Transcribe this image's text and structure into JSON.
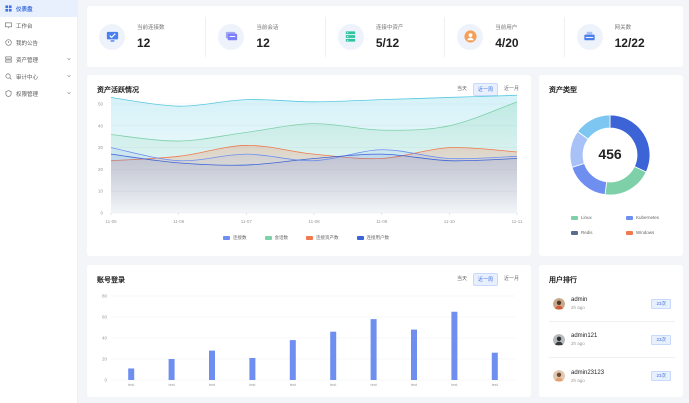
{
  "sidebar": {
    "items": [
      {
        "label": "仪表盘",
        "icon": "dashboard-icon",
        "active": true,
        "expandable": false
      },
      {
        "label": "工作台",
        "icon": "desktop-icon",
        "active": false,
        "expandable": false
      },
      {
        "label": "我的公告",
        "icon": "notice-icon",
        "active": false,
        "expandable": false
      },
      {
        "label": "资产管理",
        "icon": "asset-icon",
        "active": false,
        "expandable": true
      },
      {
        "label": "审计中心",
        "icon": "audit-icon",
        "active": false,
        "expandable": true
      },
      {
        "label": "权限管理",
        "icon": "permission-icon",
        "active": false,
        "expandable": true
      }
    ]
  },
  "stats": [
    {
      "label": "当前连接数",
      "value": "12",
      "icon": "monitor-icon",
      "color": "#4a7ff0"
    },
    {
      "label": "当前会话",
      "value": "12",
      "icon": "chat-icon",
      "color": "#7b7ff5"
    },
    {
      "label": "连接中资产",
      "value": "5/12",
      "icon": "server-icon",
      "color": "#2ec4a0"
    },
    {
      "label": "当前用户",
      "value": "4/20",
      "icon": "user-icon",
      "color": "#f5a05a"
    },
    {
      "label": "网关数",
      "value": "12/22",
      "icon": "gateway-icon",
      "color": "#4a7ff0"
    }
  ],
  "trend": {
    "title": "资产活跃情况",
    "ranges": [
      "当天",
      "近一周",
      "近一月"
    ],
    "selected": 1,
    "legend": [
      {
        "name": "连接数",
        "color": "#6f8ff0"
      },
      {
        "name": "会话数",
        "color": "#7ed0a8"
      },
      {
        "name": "连接资产数",
        "color": "#f07a4e"
      },
      {
        "name": "连接用户数",
        "color": "#3d64d6"
      }
    ]
  },
  "login": {
    "title": "账号登录",
    "ranges": [
      "当天",
      "近一周",
      "近一月"
    ],
    "selected": 1
  },
  "ptype": {
    "title": "资产类型",
    "total": "456",
    "legend": [
      {
        "name": "Linux",
        "color": "#7ed0a8"
      },
      {
        "name": "Kubernetes",
        "color": "#6f8ff0"
      },
      {
        "name": "Redis",
        "color": "#5a6b8f"
      },
      {
        "name": "Windows",
        "color": "#f07a4e"
      }
    ]
  },
  "rank": {
    "title": "用户排行",
    "items": [
      {
        "name": "admin",
        "time": "2h ago",
        "badge": "23次"
      },
      {
        "name": "admin121",
        "time": "2h ago",
        "badge": "23次"
      },
      {
        "name": "admin23123",
        "time": "2h ago",
        "badge": "23次"
      }
    ]
  },
  "chart_data": [
    {
      "type": "area",
      "categories": [
        "11-05",
        "11-06",
        "11-07",
        "11-08",
        "11-09",
        "11-10",
        "11-11"
      ],
      "ylim": [
        0,
        50
      ],
      "yticks": [
        0,
        10,
        20,
        30,
        40,
        50
      ],
      "grid": true,
      "legend_position": "bottom",
      "series": [
        {
          "name": "连接数",
          "color": "#6f8ff0",
          "values": [
            30,
            24,
            27,
            24,
            29,
            25,
            26
          ]
        },
        {
          "name": "会话数",
          "color": "#7ed0a8",
          "values": [
            36,
            33,
            37,
            41,
            38,
            40,
            51
          ]
        },
        {
          "name": "连接资产数",
          "color": "#f07a4e",
          "values": [
            24,
            26,
            31,
            27,
            25,
            30,
            28
          ]
        },
        {
          "name": "连接用户数",
          "color": "#3d64d6",
          "values": [
            27,
            23,
            22,
            25,
            27,
            24,
            25
          ]
        },
        {
          "name": "",
          "color": "#57c9e0",
          "values": [
            53,
            49,
            52,
            51,
            52,
            53,
            54
          ]
        }
      ]
    },
    {
      "type": "bar",
      "categories": [
        "test",
        "test",
        "test",
        "test",
        "test",
        "test",
        "test",
        "test",
        "test",
        "test"
      ],
      "values": [
        11,
        20,
        28,
        21,
        38,
        46,
        58,
        48,
        65,
        26
      ],
      "ylim": [
        0,
        80
      ],
      "yticks": [
        0,
        20,
        40,
        60,
        80
      ],
      "color": "#6f8ff0",
      "grid": true
    },
    {
      "type": "pie",
      "donut": true,
      "labels": [
        "Kubernetes",
        "Linux",
        "Kubernetes",
        "Linux",
        "Kubernetes"
      ],
      "values": [
        32,
        20,
        18,
        15,
        15
      ],
      "colors": [
        "#3d64d6",
        "#7ed0a8",
        "#6f8ff0",
        "#a8c2f7",
        "#7ec6f2"
      ]
    }
  ]
}
